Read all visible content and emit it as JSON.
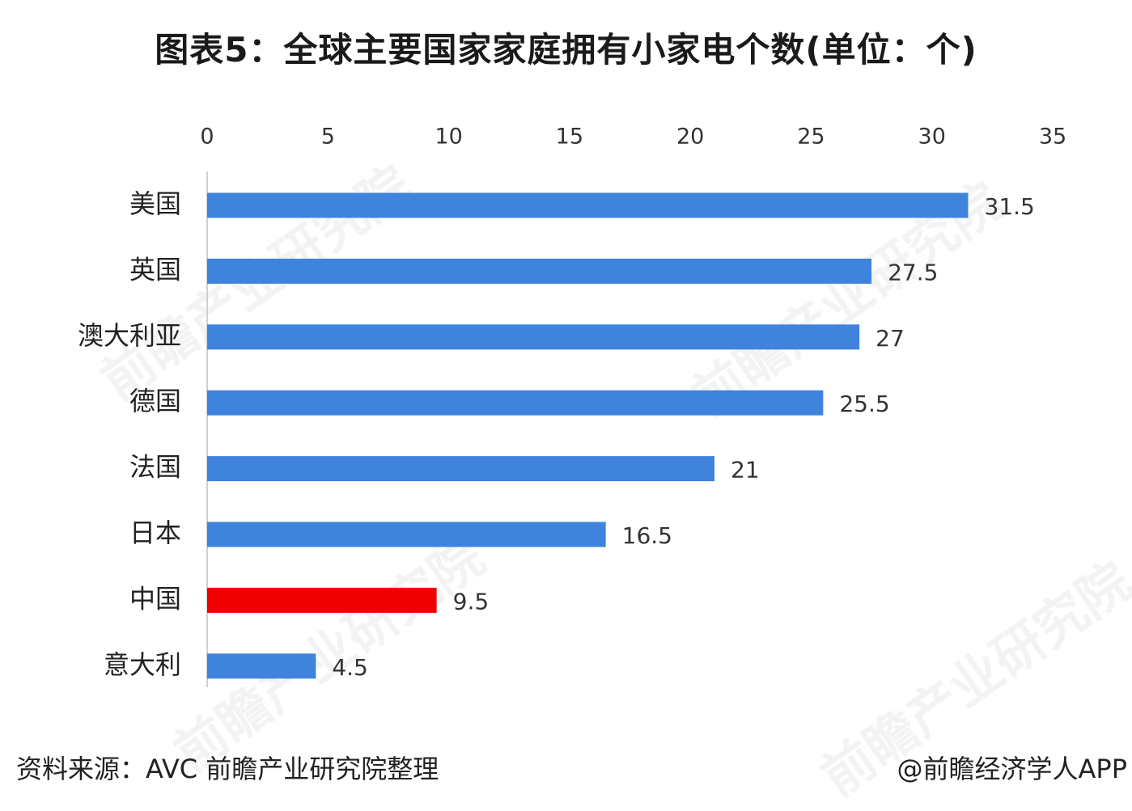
{
  "title": "图表5：全球主要国家家庭拥有小家电个数(单位：个)",
  "footer": {
    "source": "资料来源：AVC 前瞻产业研究院整理",
    "brand": "@前瞻经济学人APP"
  },
  "watermark": {
    "text": "前瞻产业研究院"
  },
  "colors": {
    "bar_default": "#3f83dc",
    "bar_highlight": "#ee0000",
    "axis": "#d0d0d0",
    "tick_text": "#333333",
    "label_text": "#222222"
  },
  "chart_data": {
    "type": "bar",
    "orientation": "horizontal",
    "categories": [
      "美国",
      "英国",
      "澳大利亚",
      "德国",
      "法国",
      "日本",
      "中国",
      "意大利"
    ],
    "values": [
      31.5,
      27.5,
      27,
      25.5,
      21,
      16.5,
      9.5,
      4.5
    ],
    "value_labels": [
      "31.5",
      "27.5",
      "27",
      "25.5",
      "21",
      "16.5",
      "9.5",
      "4.5"
    ],
    "highlight": "中国",
    "xlim": [
      0,
      35
    ],
    "xticks": [
      "0",
      "5",
      "10",
      "15",
      "20",
      "25",
      "30",
      "35"
    ],
    "x_axis_position": "top",
    "grid": false,
    "legend": "none"
  }
}
